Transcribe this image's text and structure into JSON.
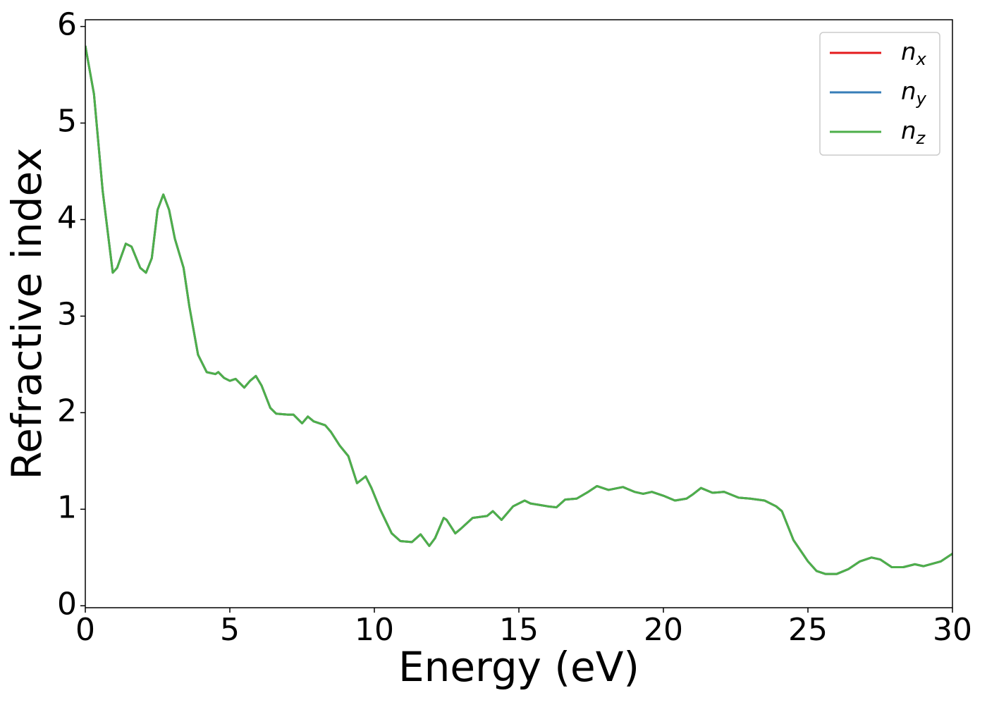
{
  "chart_data": {
    "type": "line",
    "xlabel": "Energy (eV)",
    "ylabel": "Refractive index",
    "x": [
      0,
      0.3,
      0.6,
      0.95,
      1.1,
      1.4,
      1.6,
      1.9,
      2.1,
      2.3,
      2.5,
      2.7,
      2.9,
      3.1,
      3.4,
      3.6,
      3.9,
      4.2,
      4.5,
      4.6,
      4.8,
      5.0,
      5.2,
      5.5,
      5.7,
      5.9,
      6.1,
      6.4,
      6.6,
      7.0,
      7.2,
      7.5,
      7.7,
      7.9,
      8.3,
      8.5,
      8.8,
      9.1,
      9.4,
      9.7,
      9.9,
      10.2,
      10.6,
      10.9,
      11.3,
      11.6,
      11.9,
      12.1,
      12.4,
      12.5,
      12.8,
      13.0,
      13.4,
      13.9,
      14.1,
      14.4,
      14.8,
      15.2,
      15.4,
      16.0,
      16.3,
      16.6,
      17.0,
      17.4,
      17.7,
      18.1,
      18.6,
      19.0,
      19.3,
      19.6,
      20.0,
      20.4,
      20.8,
      21.0,
      21.3,
      21.7,
      22.1,
      22.6,
      23.0,
      23.5,
      23.9,
      24.1,
      24.5,
      25.0,
      25.3,
      25.6,
      26.0,
      26.4,
      26.8,
      27.2,
      27.5,
      27.9,
      28.3,
      28.7,
      29.0,
      29.6,
      30.0
    ],
    "series": [
      {
        "name": "nx",
        "color": "#e41a1c",
        "values": [
          5.8,
          5.3,
          4.3,
          3.45,
          3.5,
          3.75,
          3.72,
          3.5,
          3.45,
          3.6,
          4.1,
          4.26,
          4.1,
          3.8,
          3.5,
          3.1,
          2.6,
          2.42,
          2.4,
          2.42,
          2.36,
          2.33,
          2.35,
          2.26,
          2.33,
          2.38,
          2.28,
          2.05,
          1.99,
          1.98,
          1.98,
          1.89,
          1.96,
          1.91,
          1.87,
          1.8,
          1.66,
          1.55,
          1.27,
          1.34,
          1.22,
          1.0,
          0.75,
          0.67,
          0.66,
          0.74,
          0.62,
          0.7,
          0.91,
          0.89,
          0.75,
          0.8,
          0.91,
          0.93,
          0.98,
          0.89,
          1.03,
          1.09,
          1.06,
          1.03,
          1.02,
          1.1,
          1.11,
          1.18,
          1.24,
          1.2,
          1.23,
          1.18,
          1.16,
          1.18,
          1.14,
          1.09,
          1.11,
          1.15,
          1.22,
          1.17,
          1.18,
          1.12,
          1.11,
          1.09,
          1.03,
          0.98,
          0.68,
          0.46,
          0.36,
          0.33,
          0.33,
          0.38,
          0.46,
          0.5,
          0.48,
          0.4,
          0.4,
          0.43,
          0.41,
          0.46,
          0.54
        ]
      },
      {
        "name": "ny",
        "color": "#377eb8",
        "values": [
          5.8,
          5.3,
          4.3,
          3.45,
          3.5,
          3.75,
          3.72,
          3.5,
          3.45,
          3.6,
          4.1,
          4.26,
          4.1,
          3.8,
          3.5,
          3.1,
          2.6,
          2.42,
          2.4,
          2.42,
          2.36,
          2.33,
          2.35,
          2.26,
          2.33,
          2.38,
          2.28,
          2.05,
          1.99,
          1.98,
          1.98,
          1.89,
          1.96,
          1.91,
          1.87,
          1.8,
          1.66,
          1.55,
          1.27,
          1.34,
          1.22,
          1.0,
          0.75,
          0.67,
          0.66,
          0.74,
          0.62,
          0.7,
          0.91,
          0.89,
          0.75,
          0.8,
          0.91,
          0.93,
          0.98,
          0.89,
          1.03,
          1.09,
          1.06,
          1.03,
          1.02,
          1.1,
          1.11,
          1.18,
          1.24,
          1.2,
          1.23,
          1.18,
          1.16,
          1.18,
          1.14,
          1.09,
          1.11,
          1.15,
          1.22,
          1.17,
          1.18,
          1.12,
          1.11,
          1.09,
          1.03,
          0.98,
          0.68,
          0.46,
          0.36,
          0.33,
          0.33,
          0.38,
          0.46,
          0.5,
          0.48,
          0.4,
          0.4,
          0.43,
          0.41,
          0.46,
          0.54
        ]
      },
      {
        "name": "nz",
        "color": "#4daf4a",
        "values": [
          5.8,
          5.3,
          4.3,
          3.45,
          3.5,
          3.75,
          3.72,
          3.5,
          3.45,
          3.6,
          4.1,
          4.26,
          4.1,
          3.8,
          3.5,
          3.1,
          2.6,
          2.42,
          2.4,
          2.42,
          2.36,
          2.33,
          2.35,
          2.26,
          2.33,
          2.38,
          2.28,
          2.05,
          1.99,
          1.98,
          1.98,
          1.89,
          1.96,
          1.91,
          1.87,
          1.8,
          1.66,
          1.55,
          1.27,
          1.34,
          1.22,
          1.0,
          0.75,
          0.67,
          0.66,
          0.74,
          0.62,
          0.7,
          0.91,
          0.89,
          0.75,
          0.8,
          0.91,
          0.93,
          0.98,
          0.89,
          1.03,
          1.09,
          1.06,
          1.03,
          1.02,
          1.1,
          1.11,
          1.18,
          1.24,
          1.2,
          1.23,
          1.18,
          1.16,
          1.18,
          1.14,
          1.09,
          1.11,
          1.15,
          1.22,
          1.17,
          1.18,
          1.12,
          1.11,
          1.09,
          1.03,
          0.98,
          0.68,
          0.46,
          0.36,
          0.33,
          0.33,
          0.38,
          0.46,
          0.5,
          0.48,
          0.4,
          0.4,
          0.43,
          0.41,
          0.46,
          0.54
        ]
      }
    ],
    "xlim": [
      0,
      30
    ],
    "xticks": [
      0,
      5,
      10,
      15,
      20,
      25,
      30
    ],
    "ylim": [
      -0.02,
      6.07
    ],
    "yticks": [
      0,
      1,
      2,
      3,
      4,
      5,
      6
    ],
    "grid": false,
    "legend": "upper right"
  }
}
